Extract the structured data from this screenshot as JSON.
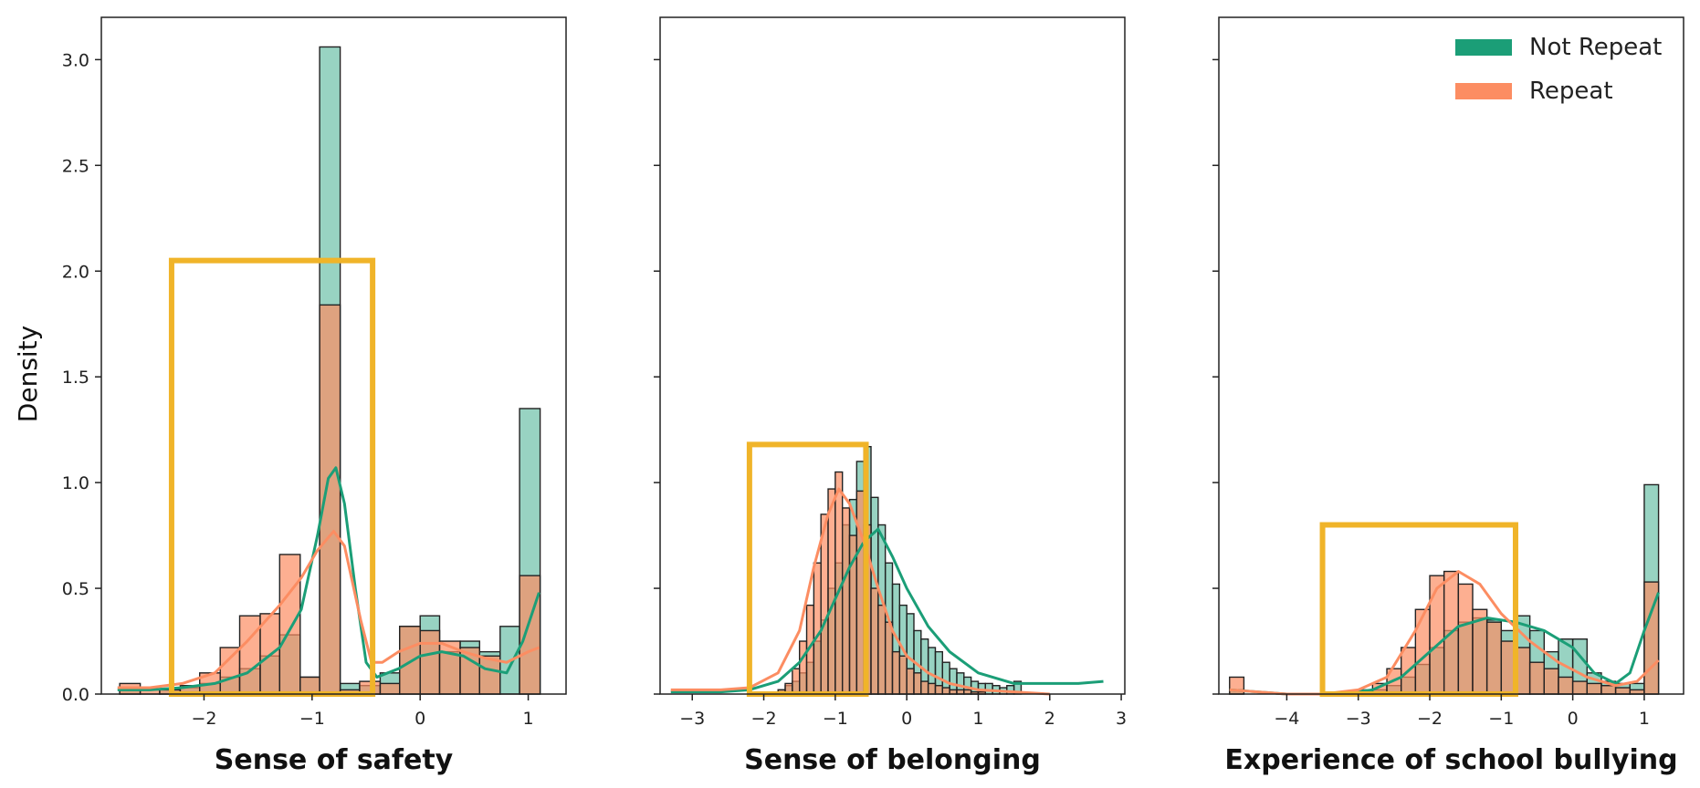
{
  "colors": {
    "not_repeat": "#1b9e77",
    "repeat": "#fc8d62",
    "highlight_box": "#f0b429"
  },
  "chart_data": [
    {
      "type": "histogram",
      "xlabel": "Sense of safety",
      "ylabel": "Density",
      "xlim": [
        -2.95,
        1.35
      ],
      "ylim": [
        0,
        3.2
      ],
      "xticks": [
        -2,
        -1,
        0,
        1
      ],
      "yticks": [
        0.0,
        0.5,
        1.0,
        1.5,
        2.0,
        2.5,
        3.0
      ],
      "bins": [
        -2.78,
        -2.59,
        -2.41,
        -2.22,
        -2.04,
        -1.85,
        -1.67,
        -1.48,
        -1.3,
        -1.11,
        -0.93,
        -0.74,
        -0.56,
        -0.37,
        -0.19,
        0.0,
        0.18,
        0.37,
        0.55,
        0.74,
        0.92,
        1.11
      ],
      "series": [
        {
          "name": "Not Repeat",
          "color_key": "not_repeat",
          "values": [
            0.02,
            0.0,
            0.02,
            0.03,
            0.05,
            0.08,
            0.12,
            0.18,
            0.28,
            0.08,
            3.06,
            0.05,
            0.04,
            0.1,
            0.32,
            0.37,
            0.2,
            0.25,
            0.2,
            0.32,
            1.35
          ],
          "kde_x": [
            -2.8,
            -2.5,
            -2.2,
            -1.9,
            -1.6,
            -1.3,
            -1.1,
            -0.95,
            -0.85,
            -0.78,
            -0.7,
            -0.6,
            -0.5,
            -0.4,
            -0.2,
            0.0,
            0.2,
            0.4,
            0.6,
            0.8,
            0.95,
            1.1
          ],
          "kde_y": [
            0.02,
            0.02,
            0.03,
            0.05,
            0.1,
            0.22,
            0.4,
            0.75,
            1.02,
            1.07,
            0.9,
            0.5,
            0.15,
            0.08,
            0.12,
            0.18,
            0.2,
            0.18,
            0.12,
            0.1,
            0.25,
            0.48
          ]
        },
        {
          "name": "Repeat",
          "color_key": "repeat",
          "values": [
            0.05,
            0.02,
            0.02,
            0.04,
            0.1,
            0.22,
            0.37,
            0.38,
            0.66,
            0.08,
            1.84,
            0.02,
            0.06,
            0.05,
            0.32,
            0.3,
            0.25,
            0.22,
            0.18,
            0.0,
            0.56
          ],
          "kde_x": [
            -2.8,
            -2.5,
            -2.2,
            -1.9,
            -1.6,
            -1.3,
            -1.1,
            -0.95,
            -0.8,
            -0.7,
            -0.55,
            -0.45,
            -0.35,
            -0.2,
            0.0,
            0.2,
            0.4,
            0.6,
            0.8,
            1.0,
            1.1
          ],
          "kde_y": [
            0.03,
            0.03,
            0.05,
            0.1,
            0.25,
            0.42,
            0.55,
            0.68,
            0.77,
            0.7,
            0.35,
            0.15,
            0.15,
            0.2,
            0.24,
            0.24,
            0.2,
            0.17,
            0.15,
            0.2,
            0.22
          ]
        }
      ],
      "highlight": {
        "x0": -2.3,
        "x1": -0.44,
        "y0": 0.0,
        "y1": 2.05
      }
    },
    {
      "type": "histogram",
      "xlabel": "Sense of belonging",
      "ylabel": "",
      "xlim": [
        -3.45,
        3.05
      ],
      "ylim": [
        0,
        3.2
      ],
      "xticks": [
        -3,
        -2,
        -1,
        0,
        1,
        2,
        3
      ],
      "yticks": [
        0.0,
        0.5,
        1.0,
        1.5,
        2.0,
        2.5,
        3.0
      ],
      "bins": [
        -1.8,
        -1.7,
        -1.6,
        -1.5,
        -1.4,
        -1.3,
        -1.2,
        -1.1,
        -1.0,
        -0.9,
        -0.8,
        -0.7,
        -0.6,
        -0.5,
        -0.4,
        -0.3,
        -0.2,
        -0.1,
        0.0,
        0.1,
        0.2,
        0.3,
        0.4,
        0.5,
        0.6,
        0.7,
        0.8,
        0.9,
        1.0,
        1.1,
        1.2,
        1.3,
        1.4,
        1.5,
        1.6
      ],
      "series": [
        {
          "name": "Not Repeat",
          "color_key": "not_repeat",
          "values": [
            0.02,
            0.04,
            0.06,
            0.1,
            0.15,
            0.25,
            0.35,
            0.5,
            0.62,
            0.8,
            0.92,
            1.1,
            1.17,
            0.93,
            0.8,
            0.62,
            0.52,
            0.42,
            0.38,
            0.3,
            0.26,
            0.22,
            0.2,
            0.15,
            0.12,
            0.1,
            0.08,
            0.06,
            0.05,
            0.05,
            0.04,
            0.03,
            0.04,
            0.06
          ],
          "kde_x": [
            -3.3,
            -2.6,
            -2.2,
            -1.8,
            -1.5,
            -1.2,
            -1.0,
            -0.8,
            -0.6,
            -0.4,
            -0.2,
            0.0,
            0.3,
            0.6,
            1.0,
            1.5,
            2.0,
            2.4,
            2.75
          ],
          "kde_y": [
            0.01,
            0.01,
            0.02,
            0.06,
            0.15,
            0.3,
            0.45,
            0.6,
            0.72,
            0.78,
            0.65,
            0.5,
            0.32,
            0.2,
            0.1,
            0.05,
            0.05,
            0.05,
            0.06
          ]
        },
        {
          "name": "Repeat",
          "color_key": "repeat",
          "values": [
            0.02,
            0.05,
            0.12,
            0.25,
            0.42,
            0.62,
            0.85,
            0.97,
            1.05,
            0.88,
            0.75,
            0.96,
            0.8,
            0.5,
            0.42,
            0.34,
            0.2,
            0.18,
            0.12,
            0.1,
            0.06,
            0.05,
            0.04,
            0.03,
            0.02,
            0.02,
            0.02,
            0.01,
            0.01,
            0.0,
            0.0,
            0.0,
            0.0,
            0.0
          ],
          "kde_x": [
            -3.3,
            -2.6,
            -2.2,
            -1.8,
            -1.5,
            -1.3,
            -1.1,
            -0.95,
            -0.8,
            -0.6,
            -0.4,
            -0.2,
            0.0,
            0.3,
            0.6,
            1.0,
            1.5,
            2.0
          ],
          "kde_y": [
            0.02,
            0.02,
            0.03,
            0.1,
            0.3,
            0.6,
            0.85,
            0.97,
            0.9,
            0.72,
            0.5,
            0.3,
            0.18,
            0.1,
            0.05,
            0.02,
            0.01,
            0.0
          ]
        }
      ],
      "highlight": {
        "x0": -2.2,
        "x1": -0.57,
        "y0": 0.0,
        "y1": 1.18
      }
    },
    {
      "type": "histogram",
      "xlabel": "Experience of school bullying",
      "ylabel": "",
      "xlim": [
        -4.95,
        1.55
      ],
      "ylim": [
        0,
        3.2
      ],
      "xticks": [
        -4,
        -3,
        -2,
        -1,
        0,
        1
      ],
      "yticks": [
        0.0,
        0.5,
        1.0,
        1.5,
        2.0,
        2.5,
        3.0
      ],
      "bins": [
        -4.8,
        -4.6,
        -4.4,
        -4.2,
        -4.0,
        -3.8,
        -3.6,
        -3.4,
        -3.2,
        -3.0,
        -2.8,
        -2.6,
        -2.4,
        -2.2,
        -2.0,
        -1.8,
        -1.6,
        -1.4,
        -1.2,
        -1.0,
        -0.8,
        -0.6,
        -0.4,
        -0.2,
        0.0,
        0.2,
        0.4,
        0.6,
        0.8,
        1.0,
        1.2
      ],
      "series": [
        {
          "name": "Not Repeat",
          "color_key": "not_repeat",
          "values": [
            0.02,
            0.0,
            0.0,
            0.0,
            0.0,
            0.0,
            0.0,
            0.0,
            0.0,
            0.01,
            0.02,
            0.04,
            0.08,
            0.14,
            0.22,
            0.3,
            0.34,
            0.36,
            0.35,
            0.3,
            0.37,
            0.3,
            0.2,
            0.26,
            0.26,
            0.1,
            0.06,
            0.05,
            0.05,
            0.99
          ],
          "kde_x": [
            -4.8,
            -4.0,
            -3.3,
            -2.8,
            -2.4,
            -2.0,
            -1.6,
            -1.2,
            -0.8,
            -0.4,
            0.0,
            0.3,
            0.6,
            0.8,
            1.0,
            1.2
          ],
          "kde_y": [
            0.02,
            0.0,
            0.0,
            0.02,
            0.08,
            0.2,
            0.32,
            0.36,
            0.34,
            0.3,
            0.22,
            0.1,
            0.05,
            0.1,
            0.3,
            0.48
          ]
        },
        {
          "name": "Repeat",
          "color_key": "repeat",
          "values": [
            0.08,
            0.0,
            0.0,
            0.0,
            0.0,
            0.0,
            0.0,
            0.0,
            0.0,
            0.02,
            0.05,
            0.12,
            0.22,
            0.4,
            0.56,
            0.58,
            0.52,
            0.4,
            0.34,
            0.25,
            0.22,
            0.15,
            0.12,
            0.08,
            0.06,
            0.05,
            0.04,
            0.03,
            0.02,
            0.53
          ],
          "kde_x": [
            -4.8,
            -4.0,
            -3.5,
            -3.0,
            -2.6,
            -2.2,
            -1.9,
            -1.6,
            -1.3,
            -1.0,
            -0.6,
            -0.2,
            0.2,
            0.6,
            0.9,
            1.2
          ],
          "kde_y": [
            0.02,
            0.0,
            0.0,
            0.02,
            0.08,
            0.3,
            0.5,
            0.58,
            0.52,
            0.38,
            0.25,
            0.15,
            0.08,
            0.04,
            0.06,
            0.16
          ]
        }
      ],
      "highlight": {
        "x0": -3.5,
        "x1": -0.8,
        "y0": 0.0,
        "y1": 0.8
      }
    }
  ],
  "legend": {
    "placement": "top-right",
    "entries": [
      {
        "label": "Not Repeat",
        "color_key": "not_repeat"
      },
      {
        "label": "Repeat",
        "color_key": "repeat"
      }
    ]
  }
}
